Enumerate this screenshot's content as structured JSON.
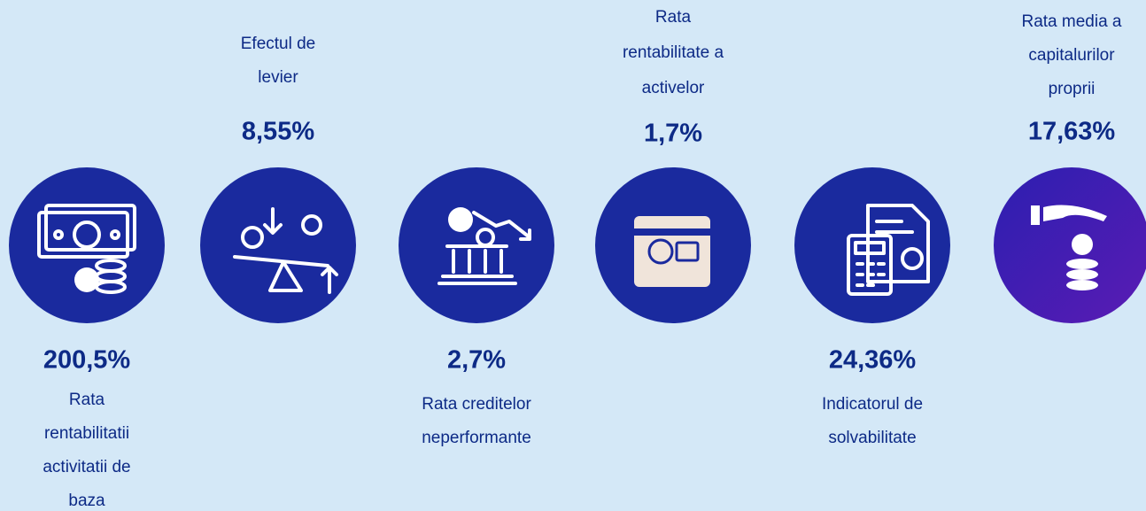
{
  "items": [
    {
      "value": "200,5%",
      "label": [
        "Rata",
        "rentabilitatii",
        "activitatii de",
        "baza"
      ]
    },
    {
      "value": "8,55%",
      "label": [
        "Efectul de",
        "levier"
      ]
    },
    {
      "value": "2,7%",
      "label": [
        "Rata creditelor",
        "neperformante"
      ]
    },
    {
      "value": "1,7%",
      "label": [
        "Rata",
        "rentabilitate a",
        "activelor"
      ]
    },
    {
      "value": "24,36%",
      "label": [
        "Indicatorul de",
        "solvabilitate"
      ]
    },
    {
      "value": "17,63%",
      "label": [
        "Rata media a",
        "capitalurilor",
        "proprii"
      ]
    }
  ]
}
